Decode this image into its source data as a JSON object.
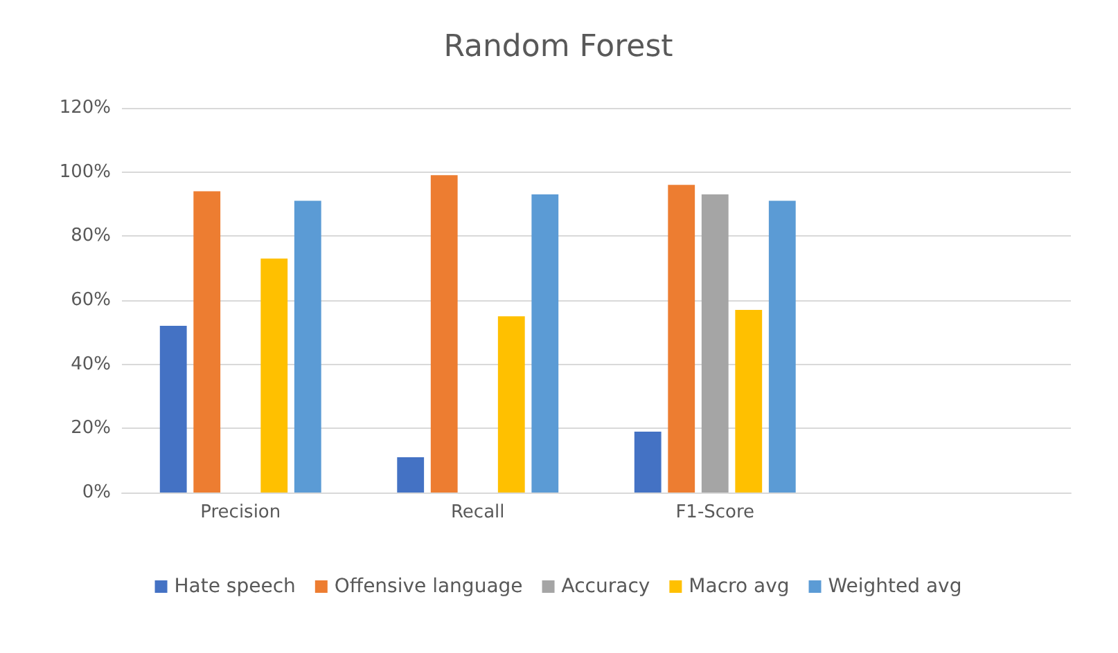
{
  "chart_data": {
    "type": "bar",
    "title": "Random Forest",
    "categories": [
      "Precision",
      "Recall",
      "F1-Score",
      null
    ],
    "series": [
      {
        "name": "Hate speech",
        "color": "#4472c4",
        "values": [
          52,
          11,
          19,
          null
        ]
      },
      {
        "name": "Offensive language",
        "color": "#ed7d31",
        "values": [
          94,
          99,
          96,
          null
        ]
      },
      {
        "name": "Accuracy",
        "color": "#a5a5a5",
        "values": [
          null,
          null,
          93,
          null
        ]
      },
      {
        "name": "Macro avg",
        "color": "#ffc000",
        "values": [
          73,
          55,
          57,
          null
        ]
      },
      {
        "name": "Weighted avg",
        "color": "#5b9bd5",
        "values": [
          91,
          93,
          91,
          null
        ]
      }
    ],
    "ylim": [
      0,
      120
    ],
    "yticks": [
      {
        "value": 0,
        "label": "0%"
      },
      {
        "value": 20,
        "label": "20%"
      },
      {
        "value": 40,
        "label": "40%"
      },
      {
        "value": 60,
        "label": "60%"
      },
      {
        "value": 80,
        "label": "80%"
      },
      {
        "value": 100,
        "label": "100%"
      },
      {
        "value": 120,
        "label": "120%"
      }
    ],
    "grid": "y",
    "legend": "bottom"
  }
}
